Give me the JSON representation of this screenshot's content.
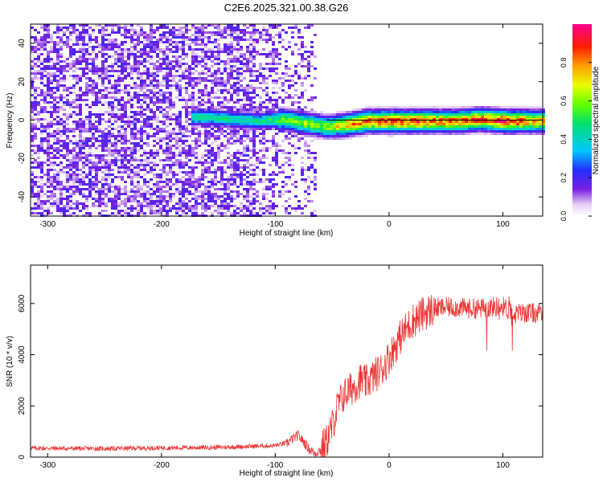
{
  "title": "C2E6.2025.321.00.38.G26",
  "chart_data": [
    {
      "type": "heatmap",
      "xlabel": "Height of straight line (km)",
      "ylabel": "Frequency (Hz)",
      "xlim": [
        -315,
        135
      ],
      "ylim": [
        -50,
        50
      ],
      "xticks": [
        -300,
        -200,
        -100,
        0,
        100
      ],
      "yticks": [
        -40,
        -20,
        0,
        20,
        40
      ],
      "colorbar": {
        "label": "Normalized spectral amplitude",
        "range": [
          0,
          1
        ],
        "ticks": [
          "0.0",
          "0.2",
          "0.4",
          "0.6",
          "0.8"
        ],
        "colormap": "rainbow (white-purple-blue-cyan-green-yellow-orange-red-magenta)"
      },
      "ridge": [
        {
          "x": -160,
          "y": 2,
          "amp": 0.45
        },
        {
          "x": -115,
          "y": 0,
          "amp": 0.45
        },
        {
          "x": -95,
          "y": 1,
          "amp": 0.55
        },
        {
          "x": -75,
          "y": -1,
          "amp": 0.6
        },
        {
          "x": -55,
          "y": -3,
          "amp": 0.6
        },
        {
          "x": -40,
          "y": -2,
          "amp": 0.75
        },
        {
          "x": -20,
          "y": 0,
          "amp": 0.85
        },
        {
          "x": 0,
          "y": 0,
          "amp": 0.88
        },
        {
          "x": 20,
          "y": 0,
          "amp": 0.85
        },
        {
          "x": 40,
          "y": 0,
          "amp": 0.8
        },
        {
          "x": 60,
          "y": 0,
          "amp": 0.82
        },
        {
          "x": 80,
          "y": 1,
          "amp": 0.85
        },
        {
          "x": 100,
          "y": 0,
          "amp": 0.9
        },
        {
          "x": 130,
          "y": 0,
          "amp": 0.75
        }
      ],
      "noise_region_x": [
        -315,
        -65
      ],
      "grid": false
    },
    {
      "type": "line",
      "xlabel": "Height of straight line (km)",
      "ylabel": "SNR (10 * v/v)",
      "xlim": [
        -315,
        135
      ],
      "ylim": [
        0,
        7500
      ],
      "xticks": [
        -300,
        -200,
        -100,
        0,
        100
      ],
      "yticks": [
        0,
        2000,
        4000,
        6000
      ],
      "color": "#ee3333",
      "x": [
        -315,
        -250,
        -200,
        -150,
        -120,
        -100,
        -90,
        -80,
        -75,
        -70,
        -65,
        -60,
        -55,
        -50,
        -45,
        -40,
        -35,
        -30,
        -25,
        -20,
        -15,
        -10,
        -5,
        0,
        10,
        20,
        30,
        40,
        50,
        60,
        70,
        80,
        90,
        100,
        110,
        120,
        135
      ],
      "values": [
        350,
        330,
        360,
        380,
        420,
        450,
        550,
        850,
        600,
        300,
        150,
        300,
        600,
        1200,
        2000,
        2400,
        2600,
        2800,
        3000,
        2900,
        3100,
        3300,
        3500,
        3900,
        4700,
        5300,
        5600,
        5800,
        5850,
        5850,
        5800,
        5800,
        5850,
        5900,
        5600,
        5650,
        5600
      ],
      "grid": false
    }
  ]
}
